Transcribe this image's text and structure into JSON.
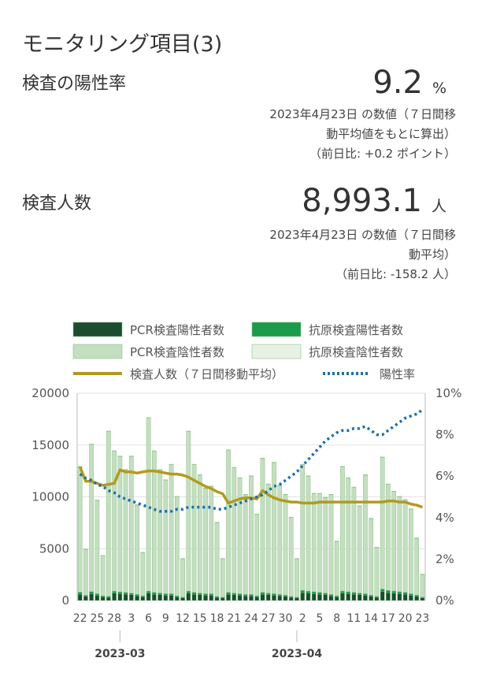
{
  "header": {
    "title": "モニタリング項目(3)"
  },
  "positivity": {
    "label": "検査の陽性率",
    "value": "9.2",
    "unit": "%",
    "note_line1": "2023年4月23日 の数値（７日間移",
    "note_line2": "動平均値をもとに算出）",
    "note_line3": "（前日比: +0.2 ポイント）"
  },
  "tests": {
    "label": "検査人数",
    "value": "8,993.1",
    "unit": "人",
    "note_line1": "2023年4月23日 の数値（７日間移",
    "note_line2": "動平均）",
    "note_line3": "（前日比: -158.2 人）"
  },
  "legend": [
    {
      "name": "PCR検査陽性者数",
      "color": "#1b4d2e",
      "kind": "box"
    },
    {
      "name": "抗原検査陽性者数",
      "color": "#1a9c4a",
      "kind": "box"
    },
    {
      "name": "PCR検査陰性者数",
      "color": "#c3dfc0",
      "kind": "box"
    },
    {
      "name": "抗原検査陰性者数",
      "color": "#e6f2e3",
      "kind": "box"
    },
    {
      "name": "検査人数（７日間移動平均）",
      "color": "#b39a1e",
      "kind": "line"
    },
    {
      "name": "陽性率",
      "color": "#1f6fa8",
      "kind": "dotted"
    }
  ],
  "chart_data": {
    "type": "bar",
    "dates": [
      "2/22",
      "2/23",
      "2/24",
      "2/25",
      "2/26",
      "2/27",
      "2/28",
      "3/1",
      "3/2",
      "3/3",
      "3/4",
      "3/5",
      "3/6",
      "3/7",
      "3/8",
      "3/9",
      "3/10",
      "3/11",
      "3/12",
      "3/13",
      "3/14",
      "3/15",
      "3/16",
      "3/17",
      "3/18",
      "3/19",
      "3/20",
      "3/21",
      "3/22",
      "3/23",
      "3/24",
      "3/25",
      "3/26",
      "3/27",
      "3/28",
      "3/29",
      "3/30",
      "3/31",
      "4/1",
      "4/2",
      "4/3",
      "4/4",
      "4/5",
      "4/6",
      "4/7",
      "4/8",
      "4/9",
      "4/10",
      "4/11",
      "4/12",
      "4/13",
      "4/14",
      "4/15",
      "4/16",
      "4/17",
      "4/18",
      "4/19",
      "4/20",
      "4/21",
      "4/22",
      "4/23"
    ],
    "x_tick_labels": [
      "22",
      "25",
      "28",
      "3",
      "6",
      "9",
      "12",
      "15",
      "18",
      "21",
      "24",
      "27",
      "30",
      "2",
      "5",
      "8",
      "11",
      "14",
      "17",
      "20",
      "23"
    ],
    "x_tick_dates": [
      "2/22",
      "2/25",
      "2/28",
      "3/3",
      "3/6",
      "3/9",
      "3/12",
      "3/15",
      "3/18",
      "3/21",
      "3/24",
      "3/27",
      "3/30",
      "4/2",
      "4/5",
      "4/8",
      "4/11",
      "4/14",
      "4/17",
      "4/20",
      "4/23"
    ],
    "month_labels": [
      {
        "label": "2023-03",
        "date": "3/1"
      },
      {
        "label": "2023-04",
        "date": "4/1"
      }
    ],
    "y_left": {
      "ticks": [
        "0",
        "5000",
        "10000",
        "15000",
        "20000"
      ],
      "min": 0,
      "max": 20000
    },
    "y_right": {
      "ticks": [
        "0%",
        "2%",
        "4%",
        "6%",
        "8%",
        "10%"
      ],
      "min": 0,
      "max": 10
    },
    "grid": true,
    "legend_position": "top",
    "series": [
      {
        "name": "PCR検査陽性者数",
        "values": [
          600,
          400,
          650,
          500,
          350,
          300,
          700,
          650,
          600,
          550,
          450,
          350,
          700,
          600,
          550,
          500,
          500,
          350,
          250,
          700,
          600,
          550,
          500,
          500,
          300,
          250,
          600,
          550,
          500,
          450,
          450,
          350,
          600,
          550,
          500,
          450,
          400,
          300,
          250,
          750,
          700,
          650,
          600,
          550,
          450,
          350,
          700,
          650,
          600,
          550,
          500,
          400,
          300,
          850,
          750,
          700,
          650,
          600,
          500,
          400,
          250
        ]
      },
      {
        "name": "抗原検査陽性者数",
        "values": [
          200,
          100,
          200,
          150,
          100,
          100,
          200,
          180,
          170,
          160,
          130,
          100,
          200,
          180,
          170,
          150,
          150,
          100,
          80,
          200,
          180,
          160,
          150,
          150,
          90,
          80,
          180,
          160,
          150,
          130,
          130,
          100,
          180,
          160,
          150,
          130,
          120,
          90,
          80,
          220,
          200,
          190,
          180,
          160,
          130,
          100,
          210,
          190,
          180,
          160,
          150,
          120,
          90,
          250,
          220,
          210,
          190,
          180,
          150,
          120,
          80
        ]
      },
      {
        "name": "PCR検査陰性者数",
        "values": [
          12100,
          4400,
          14200,
          9000,
          3850,
          15900,
          13500,
          13070,
          11830,
          13190,
          8620,
          4150,
          16700,
          13620,
          11880,
          10950,
          12450,
          9550,
          3670,
          15400,
          12320,
          11390,
          10150,
          10350,
          7110,
          3670,
          13720,
          12090,
          11150,
          9620,
          11420,
          7850,
          12920,
          10490,
          12650,
          10520,
          9680,
          7610,
          3670,
          12130,
          11100,
          9460,
          9520,
          9190,
          9620,
          5250,
          11990,
          10960,
          10120,
          8390,
          11450,
          7380,
          4710,
          12700,
          10230,
          9590,
          9160,
          8920,
          8150,
          5480,
          2170
        ]
      },
      {
        "name": "抗原検査陰性者数",
        "values": [
          50,
          50,
          50,
          50,
          50,
          50,
          50,
          50,
          50,
          50,
          50,
          50,
          50,
          50,
          50,
          50,
          50,
          50,
          50,
          50,
          50,
          50,
          50,
          50,
          50,
          50,
          50,
          50,
          50,
          50,
          50,
          50,
          50,
          50,
          50,
          50,
          50,
          50,
          50,
          50,
          50,
          50,
          50,
          50,
          50,
          50,
          50,
          50,
          50,
          50,
          50,
          50,
          50,
          50,
          50,
          50,
          50,
          50,
          50,
          50,
          50
        ]
      },
      {
        "name": "検査人数（７日間移動平均）",
        "axis": "left",
        "values": [
          12900,
          11500,
          11500,
          11300,
          11100,
          11200,
          11300,
          12600,
          12400,
          12400,
          12300,
          12400,
          12500,
          12500,
          12400,
          12300,
          12200,
          12200,
          12100,
          11900,
          11600,
          11300,
          11000,
          10800,
          10500,
          10300,
          9400,
          9600,
          9800,
          9900,
          9900,
          9800,
          10600,
          10200,
          9900,
          9700,
          9600,
          9500,
          9500,
          9400,
          9400,
          9400,
          9500,
          9500,
          9500,
          9500,
          9500,
          9500,
          9500,
          9500,
          9500,
          9500,
          9500,
          9500,
          9600,
          9600,
          9500,
          9500,
          9300,
          9200,
          8993.1
        ]
      },
      {
        "name": "陽性率",
        "axis": "right",
        "values": [
          6.1,
          5.9,
          5.8,
          5.6,
          5.5,
          5.3,
          5.2,
          5.0,
          4.9,
          4.8,
          4.7,
          4.6,
          4.5,
          4.4,
          4.3,
          4.3,
          4.3,
          4.4,
          4.4,
          4.5,
          4.5,
          4.5,
          4.5,
          4.5,
          4.4,
          4.4,
          4.5,
          4.6,
          4.7,
          4.8,
          4.9,
          5.0,
          5.1,
          5.3,
          5.5,
          5.6,
          5.8,
          6.0,
          6.2,
          6.5,
          6.8,
          7.1,
          7.4,
          7.7,
          7.9,
          8.1,
          8.2,
          8.2,
          8.3,
          8.3,
          8.4,
          8.2,
          8.0,
          8.0,
          8.2,
          8.4,
          8.6,
          8.8,
          8.9,
          9.0,
          9.2
        ]
      }
    ]
  }
}
